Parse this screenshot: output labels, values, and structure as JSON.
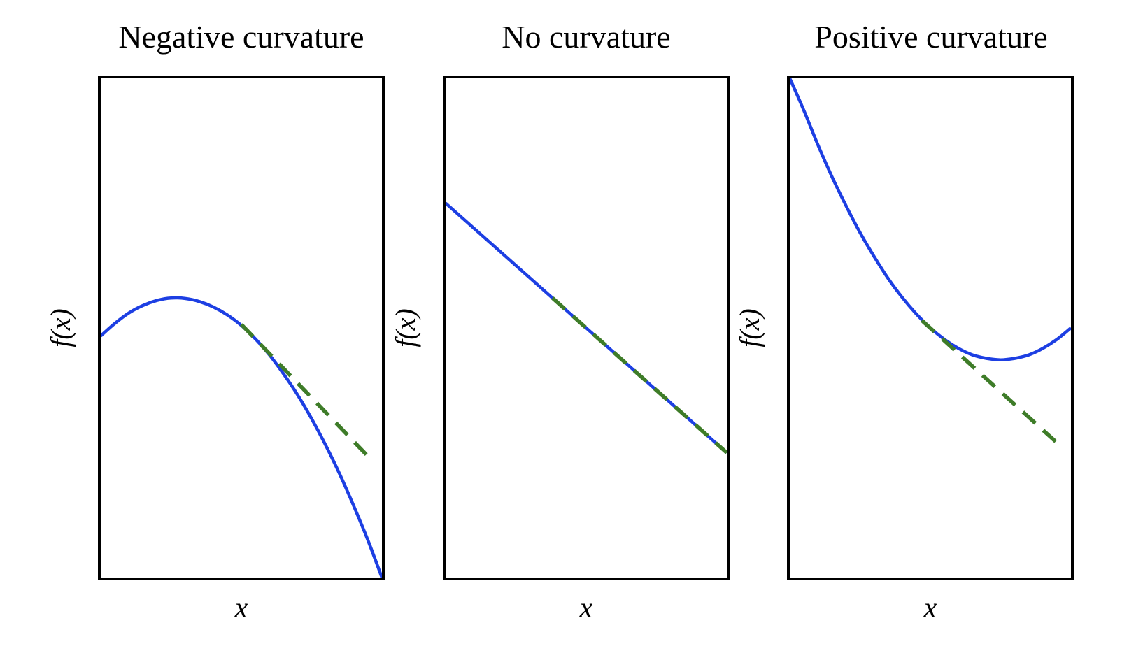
{
  "colors": {
    "curve_blue": "#1d3fe3",
    "tangent_green": "#3e7c28",
    "axis_black": "#000000",
    "background": "#ffffff"
  },
  "chart_data": [
    {
      "type": "line",
      "title": "Negative curvature",
      "xlabel": "x",
      "ylabel": "f(x)",
      "xlim": [
        0,
        1
      ],
      "ylim": [
        0,
        1
      ],
      "grid": false,
      "axes_style": "box-no-ticks",
      "series": [
        {
          "name": "function-curve",
          "legend": "f(x)",
          "color": "#1d3fe3",
          "style": "solid",
          "width": 4.5,
          "x": [
            0,
            0.05,
            0.1,
            0.15,
            0.2,
            0.25,
            0.3,
            0.35,
            0.4,
            0.45,
            0.5,
            0.55,
            0.6,
            0.65,
            0.7,
            0.75,
            0.8,
            0.85,
            0.9,
            0.95,
            1
          ],
          "y": [
            0.484,
            0.509,
            0.53,
            0.545,
            0.555,
            0.56,
            0.559,
            0.553,
            0.542,
            0.526,
            0.505,
            0.478,
            0.446,
            0.408,
            0.366,
            0.318,
            0.265,
            0.207,
            0.143,
            0.075,
            0
          ]
        },
        {
          "name": "tangent-line",
          "legend": "tangent",
          "color": "#3e7c28",
          "style": "dashed",
          "width": 5.5,
          "x": [
            0.5,
            0.95
          ],
          "y": [
            0.507,
            0.243
          ]
        }
      ]
    },
    {
      "type": "line",
      "title": "No curvature",
      "xlabel": "x",
      "ylabel": "f(x)",
      "xlim": [
        0,
        1
      ],
      "ylim": [
        0,
        1
      ],
      "grid": false,
      "axes_style": "box-no-ticks",
      "series": [
        {
          "name": "function-curve",
          "legend": "f(x)",
          "color": "#1d3fe3",
          "style": "solid",
          "width": 4.5,
          "x": [
            0,
            1
          ],
          "y": [
            0.75,
            0.25
          ]
        },
        {
          "name": "tangent-line",
          "legend": "tangent",
          "color": "#3e7c28",
          "style": "dashed",
          "width": 5.5,
          "x": [
            0.38,
            1.0
          ],
          "y": [
            0.56,
            0.25
          ]
        }
      ]
    },
    {
      "type": "line",
      "title": "Positive curvature",
      "xlabel": "x",
      "ylabel": "f(x)",
      "xlim": [
        0,
        1
      ],
      "ylim": [
        0,
        1
      ],
      "grid": false,
      "axes_style": "box-no-ticks",
      "series": [
        {
          "name": "function-curve",
          "legend": "f(x)",
          "color": "#1d3fe3",
          "style": "solid",
          "width": 4.5,
          "x": [
            0,
            0.05,
            0.1,
            0.15,
            0.2,
            0.25,
            0.3,
            0.35,
            0.4,
            0.45,
            0.5,
            0.55,
            0.6,
            0.65,
            0.7,
            0.75,
            0.8,
            0.85,
            0.9,
            0.95,
            1
          ],
          "y": [
            1,
            0.936,
            0.867,
            0.803,
            0.745,
            0.691,
            0.643,
            0.599,
            0.561,
            0.528,
            0.5,
            0.477,
            0.459,
            0.446,
            0.439,
            0.436,
            0.439,
            0.446,
            0.459,
            0.477,
            0.5
          ]
        },
        {
          "name": "tangent-line",
          "legend": "tangent",
          "color": "#3e7c28",
          "style": "dashed",
          "width": 5.5,
          "x": [
            0.47,
            0.97
          ],
          "y": [
            0.515,
            0.26
          ]
        }
      ]
    }
  ]
}
